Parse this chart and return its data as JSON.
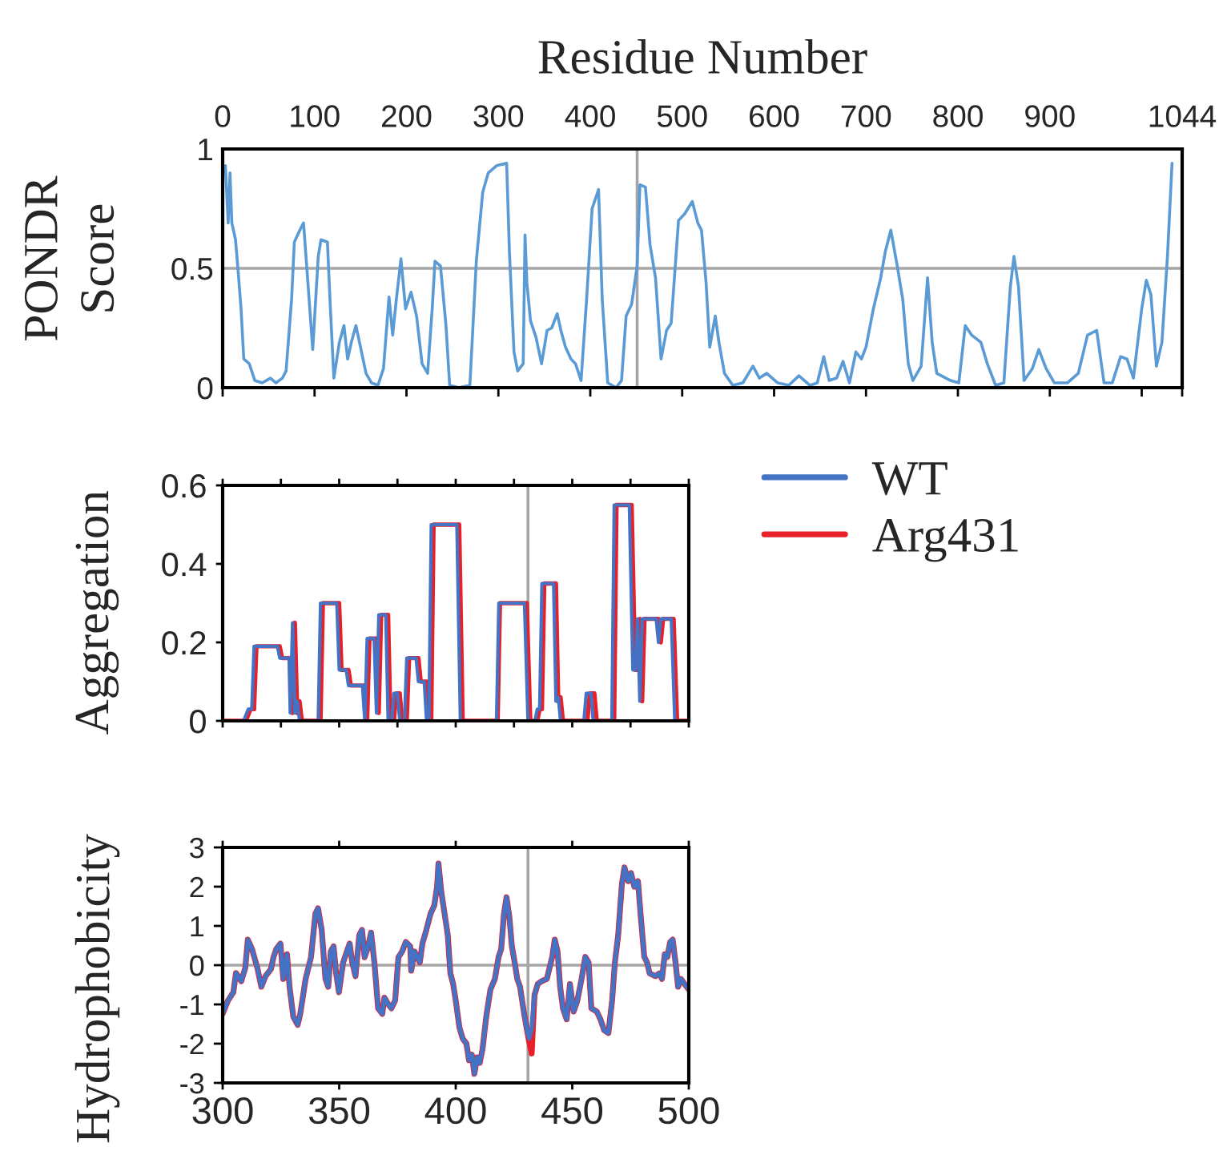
{
  "chart_data": [
    {
      "type": "line",
      "xlabel": "Residue Number",
      "ylabel": "PONDR\nScore",
      "x": [
        3,
        6,
        8,
        10,
        14,
        17,
        20,
        23,
        29,
        35,
        43,
        52,
        58,
        65,
        69,
        75,
        78,
        84,
        88,
        92,
        98,
        104,
        107,
        114,
        117,
        121,
        127,
        132,
        136,
        140,
        145,
        150,
        156,
        162,
        169,
        175,
        181,
        185,
        189,
        194,
        199,
        205,
        211,
        217,
        223,
        228,
        231,
        237,
        243,
        247,
        257,
        269,
        276,
        283,
        289,
        298,
        309,
        312,
        317,
        321,
        327,
        329,
        331,
        335,
        341,
        347,
        353,
        358,
        364,
        368,
        373,
        379,
        384,
        390,
        396,
        402,
        409,
        413,
        419,
        428,
        434,
        439,
        445,
        451,
        454,
        460,
        465,
        471,
        477,
        483,
        488,
        496,
        503,
        511,
        517,
        521,
        526,
        530,
        536,
        540,
        546,
        555,
        566,
        577,
        584,
        592,
        604,
        616,
        627,
        639,
        647,
        654,
        660,
        668,
        675,
        682,
        689,
        695,
        700,
        708,
        716,
        721,
        727,
        734,
        740,
        746,
        751,
        760,
        767,
        772,
        777,
        792,
        801,
        808,
        815,
        825,
        832,
        841,
        850,
        857,
        861,
        866,
        872,
        881,
        888,
        896,
        905,
        919,
        931,
        941,
        951,
        959,
        968,
        977,
        984,
        991,
        1000,
        1005,
        1010,
        1016,
        1022,
        1028,
        1033
      ],
      "series": [
        {
          "color": "#5b9bd5",
          "values": [
            0.93,
            0.69,
            0.9,
            0.69,
            0.62,
            0.48,
            0.33,
            0.12,
            0.1,
            0.03,
            0.02,
            0.04,
            0.02,
            0.04,
            0.07,
            0.37,
            0.61,
            0.66,
            0.69,
            0.48,
            0.16,
            0.55,
            0.62,
            0.61,
            0.35,
            0.04,
            0.19,
            0.26,
            0.12,
            0.19,
            0.26,
            0.17,
            0.06,
            0.02,
            0.01,
            0.08,
            0.38,
            0.22,
            0.37,
            0.54,
            0.33,
            0.4,
            0.3,
            0.1,
            0.06,
            0.33,
            0.53,
            0.51,
            0.26,
            0.01,
            0.0,
            0.01,
            0.53,
            0.82,
            0.9,
            0.93,
            0.94,
            0.57,
            0.15,
            0.07,
            0.1,
            0.64,
            0.44,
            0.28,
            0.21,
            0.1,
            0.24,
            0.25,
            0.31,
            0.24,
            0.17,
            0.12,
            0.1,
            0.03,
            0.37,
            0.75,
            0.83,
            0.37,
            0.02,
            0.0,
            0.03,
            0.3,
            0.35,
            0.51,
            0.85,
            0.84,
            0.6,
            0.46,
            0.12,
            0.24,
            0.27,
            0.7,
            0.73,
            0.78,
            0.69,
            0.66,
            0.44,
            0.17,
            0.3,
            0.19,
            0.06,
            0.01,
            0.02,
            0.09,
            0.04,
            0.06,
            0.02,
            0.01,
            0.05,
            0.01,
            0.02,
            0.13,
            0.03,
            0.04,
            0.11,
            0.02,
            0.15,
            0.12,
            0.17,
            0.33,
            0.46,
            0.57,
            0.66,
            0.51,
            0.37,
            0.1,
            0.03,
            0.09,
            0.46,
            0.19,
            0.06,
            0.03,
            0.02,
            0.26,
            0.22,
            0.19,
            0.1,
            0.01,
            0.02,
            0.42,
            0.55,
            0.42,
            0.03,
            0.08,
            0.16,
            0.08,
            0.02,
            0.02,
            0.06,
            0.22,
            0.24,
            0.02,
            0.02,
            0.13,
            0.12,
            0.04,
            0.33,
            0.45,
            0.39,
            0.09,
            0.19,
            0.55,
            0.94
          ]
        }
      ],
      "xlim": [
        0,
        1044
      ],
      "xticks": [
        0,
        100,
        200,
        300,
        400,
        500,
        600,
        700,
        800,
        900,
        {
          "value": 1000,
          "label": null
        },
        1044
      ],
      "ylim": [
        0,
        1
      ],
      "yticks": [
        0,
        0.5,
        1
      ],
      "ref_lines": [
        {
          "axis": "y",
          "value": 0.5,
          "color": "#a6a6a6"
        },
        {
          "axis": "x",
          "value": 451,
          "color": "#a6a6a6"
        }
      ]
    },
    {
      "type": "line",
      "ylabel": "Aggregation",
      "legend": "top right",
      "tick_labels": "y",
      "series": [
        {
          "name": "WT",
          "color": "#4472c4",
          "x": [
            300,
            309,
            311,
            312.5,
            313.5,
            323.5,
            324.5,
            328.5,
            329,
            330,
            331,
            332,
            333,
            341,
            342,
            349,
            350,
            353,
            354,
            360,
            361,
            362,
            365,
            366,
            367,
            370,
            371,
            372.5,
            373.5,
            375,
            376,
            378,
            379,
            383,
            384,
            386.5,
            387.5,
            388.5,
            389.5,
            400.5,
            402,
            417.5,
            418.5,
            429.5,
            431,
            434,
            435,
            436,
            437,
            442,
            443,
            444,
            445,
            455,
            456,
            458,
            459,
            467,
            468,
            474.5,
            476,
            477,
            478,
            479,
            480,
            486,
            487,
            488,
            492.5,
            494,
            500
          ],
          "values": [
            0,
            0,
            0.03,
            0.03,
            0.19,
            0.19,
            0.16,
            0.16,
            0.02,
            0.25,
            0.02,
            0.05,
            0,
            0,
            0.3,
            0.3,
            0.13,
            0.13,
            0.09,
            0.09,
            0,
            0.21,
            0.21,
            0.02,
            0.27,
            0.27,
            0,
            0,
            0.07,
            0.07,
            0,
            0,
            0.16,
            0.16,
            0.1,
            0.1,
            0,
            0,
            0.5,
            0.5,
            0,
            0,
            0.3,
            0.3,
            0,
            0,
            0.03,
            0.03,
            0.35,
            0.35,
            0.05,
            0.06,
            0,
            0,
            0.07,
            0.07,
            0,
            0,
            0.55,
            0.55,
            0.13,
            0.13,
            0.26,
            0.05,
            0.26,
            0.26,
            0.2,
            0.26,
            0.26,
            0,
            0
          ]
        },
        {
          "name": "Arg431",
          "color": "#e8202a",
          "x": [
            300,
            310,
            312,
            313.5,
            314.5,
            324.5,
            325.5,
            329.5,
            330,
            331,
            332,
            333,
            334,
            342,
            343,
            350,
            351,
            354,
            355,
            361,
            362,
            363,
            366,
            367,
            368,
            371,
            372,
            373.5,
            374.5,
            376,
            377,
            379,
            380,
            384,
            385,
            387.5,
            388.5,
            389.5,
            390.5,
            401.5,
            403,
            418,
            419,
            430.5,
            432,
            435,
            436,
            437,
            438,
            443,
            444,
            445,
            446,
            456.5,
            457.5,
            459.5,
            460.5,
            468,
            469,
            475.5,
            477,
            478,
            479,
            480,
            481,
            487,
            488,
            489,
            493.5,
            495,
            500
          ],
          "values": [
            0,
            0,
            0.03,
            0.03,
            0.19,
            0.19,
            0.16,
            0.16,
            0.02,
            0.25,
            0.02,
            0.05,
            0,
            0,
            0.3,
            0.3,
            0.13,
            0.13,
            0.09,
            0.09,
            0,
            0.21,
            0.21,
            0.02,
            0.27,
            0.27,
            0,
            0,
            0.07,
            0.07,
            0,
            0,
            0.16,
            0.16,
            0.1,
            0.1,
            0,
            0,
            0.5,
            0.5,
            0,
            0,
            0.3,
            0.3,
            0,
            0,
            0.03,
            0.03,
            0.35,
            0.35,
            0.05,
            0.06,
            0,
            0,
            0.07,
            0.07,
            0,
            0,
            0.55,
            0.55,
            0.13,
            0.13,
            0.26,
            0.05,
            0.26,
            0.26,
            0.2,
            0.26,
            0.26,
            0,
            0
          ]
        }
      ],
      "xlim": [
        300,
        500
      ],
      "xticks": [
        300,
        325,
        350,
        375,
        400,
        425,
        450,
        475,
        500
      ],
      "ylim": [
        0,
        0.6
      ],
      "yticks": [
        0,
        0.2,
        0.4,
        0.6
      ],
      "ref_lines": [
        {
          "axis": "x",
          "value": 431,
          "color": "#a6a6a6"
        }
      ]
    },
    {
      "type": "line",
      "ylabel": "Hydrophobicity",
      "series": [
        {
          "color": "#4472c4",
          "x": [
            300,
            302.3,
            304.6,
            305.7,
            308,
            309.7,
            310.8,
            312.6,
            314.9,
            316.6,
            318.4,
            320.7,
            321.8,
            323,
            324.8,
            326,
            327.6,
            328.7,
            330.3,
            332.2,
            333.3,
            335.6,
            337.9,
            339.8,
            340.9,
            342.5,
            344.1,
            345.3,
            346.4,
            347.6,
            348.7,
            349.9,
            351.7,
            353.3,
            354.5,
            355.6,
            357,
            358.6,
            359.8,
            360.9,
            362.1,
            363.7,
            365.1,
            366.7,
            368.5,
            369.4,
            370.8,
            372.4,
            374,
            375.4,
            377,
            378.6,
            380.5,
            380.9,
            382.3,
            384.6,
            385.7,
            387.4,
            389.2,
            390.8,
            392,
            392.6,
            393.8,
            395.4,
            396.6,
            397.7,
            398.9,
            400,
            401.6,
            403,
            404.6,
            405.7,
            406.9,
            408,
            409.2,
            410.3,
            411.5,
            413.1,
            414.9,
            416.8,
            418.4,
            419.5,
            420.7,
            421.8,
            423,
            424.1,
            425.3,
            426.4,
            427.6,
            429.2,
            430.6,
            431.5,
            432.6,
            433.8,
            435.2,
            436.8,
            439.1,
            441.4,
            442.5,
            443.7,
            444.8,
            446,
            447.6,
            449,
            450.6,
            452.2,
            454,
            455.6,
            457,
            458.2,
            460.5,
            462.1,
            463.7,
            465.5,
            467.1,
            468.3,
            469.7,
            471.3,
            472.4,
            474,
            475.2,
            476.6,
            478.2,
            479.3,
            480.9,
            482.1,
            483.2,
            485.7,
            487.4,
            488.5,
            489.7,
            490.8,
            492,
            493.1,
            494.3,
            495.4,
            496.6,
            498.2,
            500
          ],
          "values": [
            -1.24,
            -0.9,
            -0.69,
            -0.2,
            -0.41,
            -0.07,
            0.65,
            0.41,
            -0.07,
            -0.55,
            -0.28,
            -0.1,
            0.2,
            0.41,
            0.55,
            -0.35,
            0.28,
            -0.55,
            -1.31,
            -1.52,
            -1.24,
            -0.35,
            0.2,
            1.31,
            1.45,
            0.9,
            -0.35,
            -0.55,
            0.35,
            0.48,
            -0.21,
            -0.69,
            0.07,
            0.35,
            0.55,
            0.07,
            -0.28,
            0.76,
            0.9,
            0.2,
            0.41,
            0.83,
            0.07,
            -1.1,
            -1.24,
            -0.83,
            -0.97,
            -1.1,
            -0.9,
            0.2,
            0.35,
            0.59,
            0.48,
            -0.14,
            0.35,
            0.07,
            0.55,
            0.9,
            1.31,
            1.52,
            2.0,
            2.59,
            1.87,
            1.24,
            0.76,
            -0.21,
            -0.48,
            -0.9,
            -1.59,
            -1.87,
            -2.0,
            -2.42,
            -2.28,
            -2.77,
            -2.35,
            -2.49,
            -2.14,
            -1.31,
            -0.62,
            -0.35,
            0.21,
            0.41,
            1.31,
            1.73,
            1.24,
            0.48,
            0.07,
            -0.35,
            -0.55,
            -1.18,
            -1.66,
            -1.87,
            -1.59,
            -0.76,
            -0.48,
            -0.41,
            -0.35,
            0.21,
            0.65,
            0.35,
            -0.55,
            -1.1,
            -1.38,
            -0.48,
            -1.18,
            -0.9,
            -0.35,
            0.21,
            0.07,
            -1.1,
            -1.18,
            -1.38,
            -1.66,
            -1.73,
            -0.9,
            0.07,
            0.76,
            2.07,
            2.49,
            2.14,
            2.35,
            2.0,
            2.14,
            1.31,
            0.21,
            0.07,
            -0.21,
            -0.28,
            -0.21,
            -0.35,
            0.28,
            0.21,
            0.59,
            0.65,
            0.07,
            -0.55,
            -0.35,
            -0.48,
            -0.62
          ]
        },
        {
          "color": "#e8202a",
          "x": [
            300,
            302.3,
            304.6,
            305.7,
            308,
            309.7,
            310.8,
            312.6,
            314.9,
            316.6,
            318.4,
            320.7,
            321.8,
            323,
            324.8,
            326,
            327.6,
            328.7,
            330.3,
            332.2,
            333.3,
            335.6,
            337.9,
            339.8,
            340.9,
            342.5,
            344.1,
            345.3,
            346.4,
            347.6,
            348.7,
            349.9,
            351.7,
            353.3,
            354.5,
            355.6,
            357,
            358.6,
            359.8,
            360.9,
            362.1,
            363.7,
            365.1,
            366.7,
            368.5,
            369.4,
            370.8,
            372.4,
            374,
            375.4,
            377,
            378.6,
            380.5,
            380.9,
            382.3,
            384.6,
            385.7,
            387.4,
            389.2,
            390.8,
            392,
            392.6,
            393.8,
            395.4,
            396.6,
            397.7,
            398.9,
            400,
            401.6,
            403,
            404.6,
            405.7,
            406.9,
            408,
            409.2,
            410.3,
            411.5,
            413.1,
            414.9,
            416.8,
            418.4,
            419.5,
            420.7,
            421.8,
            423,
            424.1,
            425.3,
            426.4,
            427.6,
            429.2,
            430.6,
            431.5,
            432.6,
            433.8,
            435.2,
            436.8,
            439.1,
            441.4,
            442.5,
            443.7,
            444.8,
            446,
            447.6,
            449,
            450.6,
            452.2,
            454,
            455.6,
            457,
            458.2,
            460.5,
            462.1,
            463.7,
            465.5,
            467.1,
            468.3,
            469.7,
            471.3,
            472.4,
            474,
            475.2,
            476.6,
            478.2,
            479.3,
            480.9,
            482.1,
            483.2,
            485.7,
            487.4,
            488.5,
            489.7,
            490.8,
            492,
            493.1,
            494.3,
            495.4,
            496.6,
            498.2,
            500
          ],
          "values": [
            -1.24,
            -0.9,
            -0.69,
            -0.2,
            -0.41,
            -0.07,
            0.65,
            0.41,
            -0.07,
            -0.55,
            -0.28,
            -0.1,
            0.2,
            0.41,
            0.55,
            -0.35,
            0.28,
            -0.55,
            -1.31,
            -1.52,
            -1.24,
            -0.35,
            0.2,
            1.31,
            1.45,
            0.9,
            -0.35,
            -0.55,
            0.35,
            0.48,
            -0.21,
            -0.69,
            0.07,
            0.35,
            0.55,
            0.07,
            -0.28,
            0.76,
            0.9,
            0.2,
            0.41,
            0.83,
            0.07,
            -1.1,
            -1.24,
            -0.83,
            -0.97,
            -1.1,
            -0.9,
            0.2,
            0.35,
            0.59,
            0.48,
            -0.14,
            0.35,
            0.07,
            0.55,
            0.9,
            1.31,
            1.52,
            2.0,
            2.59,
            1.87,
            1.24,
            0.76,
            -0.21,
            -0.48,
            -0.9,
            -1.59,
            -1.87,
            -2.0,
            -2.42,
            -2.28,
            -2.77,
            -2.35,
            -2.49,
            -2.14,
            -1.31,
            -0.62,
            -0.35,
            0.21,
            0.41,
            1.31,
            1.73,
            1.24,
            0.48,
            0.07,
            -0.35,
            -0.55,
            -1.18,
            -1.66,
            -1.95,
            -2.25,
            -0.76,
            -0.48,
            -0.41,
            -0.35,
            0.21,
            0.65,
            0.35,
            -0.55,
            -1.1,
            -1.38,
            -0.48,
            -1.18,
            -0.9,
            -0.35,
            0.21,
            0.07,
            -1.1,
            -1.18,
            -1.38,
            -1.66,
            -1.73,
            -0.9,
            0.07,
            0.76,
            2.07,
            2.49,
            2.14,
            2.35,
            2.0,
            2.14,
            1.31,
            0.21,
            0.07,
            -0.21,
            -0.28,
            -0.21,
            -0.35,
            0.28,
            0.21,
            0.59,
            0.65,
            0.07,
            -0.55,
            -0.35,
            -0.48,
            -0.62
          ]
        }
      ],
      "xlim": [
        300,
        500
      ],
      "xticks": [
        300,
        350,
        400,
        450,
        500
      ],
      "ylim": [
        -3,
        3
      ],
      "yticks": [
        -3,
        -2,
        -1,
        0,
        1,
        2,
        3
      ],
      "ref_lines": [
        {
          "axis": "y",
          "value": 0,
          "color": "#a6a6a6"
        },
        {
          "axis": "x",
          "value": 431,
          "color": "#a6a6a6"
        }
      ]
    }
  ]
}
